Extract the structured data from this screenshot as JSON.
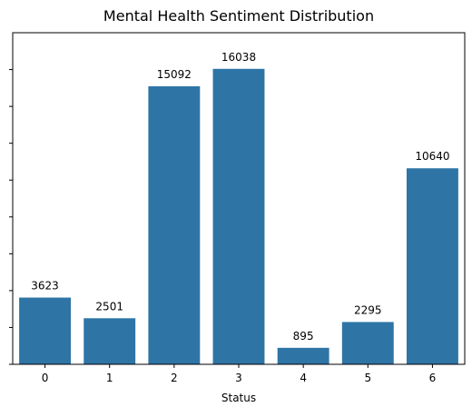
{
  "chart_data": {
    "type": "bar",
    "title": "Mental Health Sentiment Distribution",
    "xlabel": "Status",
    "ylabel": "",
    "categories": [
      "0",
      "1",
      "2",
      "3",
      "4",
      "5",
      "6"
    ],
    "values": [
      3623,
      2501,
      15092,
      16038,
      895,
      2295,
      10640
    ],
    "data_labels": [
      "3623",
      "2501",
      "15092",
      "16038",
      "895",
      "2295",
      "10640"
    ],
    "ylim": [
      0,
      18000
    ],
    "y_ticks": [
      0,
      2000,
      4000,
      6000,
      8000,
      10000,
      12000,
      14000,
      16000
    ],
    "y_tick_labels_visible": false,
    "bar_color": "#2e75a6",
    "grid": false,
    "legend": "none"
  }
}
